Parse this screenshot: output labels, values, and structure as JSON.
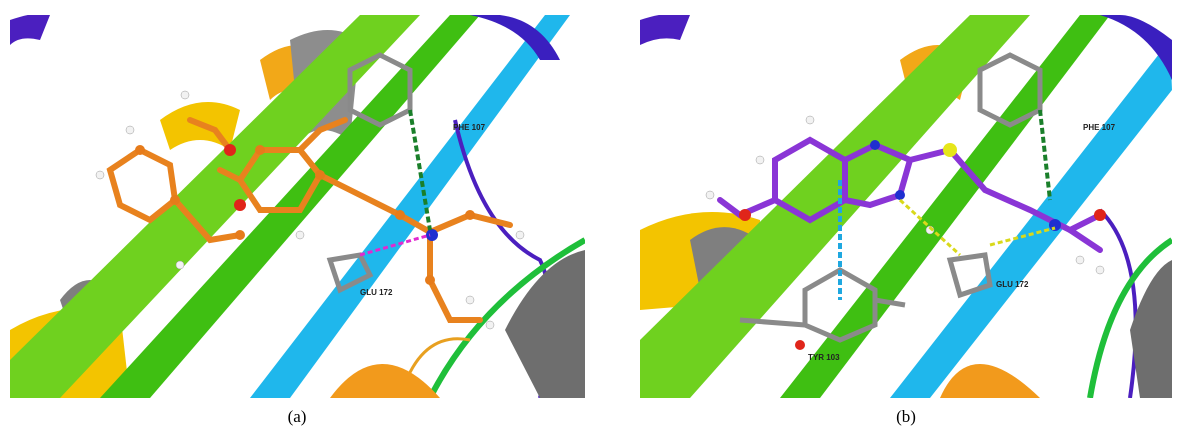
{
  "panels": [
    {
      "caption": "(a)",
      "labels": [
        "PHE 107",
        "GLU 172"
      ]
    },
    {
      "caption": "(b)",
      "labels": [
        "PHE 107",
        "GLU 172",
        "TYR 103"
      ]
    }
  ]
}
